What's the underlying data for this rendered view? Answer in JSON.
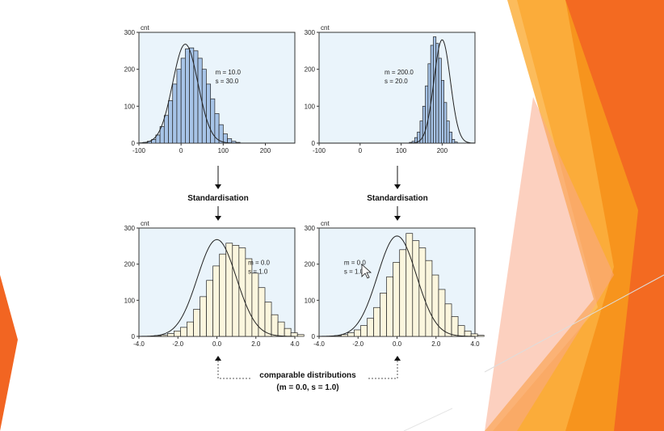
{
  "slide": {
    "step_label": "Standardisation",
    "caption_line1": "comparable distributions",
    "caption_line2": "(m = 0.0, s = 1.0)",
    "accent_colors": [
      "#f7941d",
      "#f26522",
      "#fbb040",
      "#f9a98b"
    ]
  },
  "chart_data": [
    {
      "type": "bar",
      "ylabel": "cnt",
      "xlim": [
        -100,
        270
      ],
      "ylim": [
        0,
        300
      ],
      "xticks": [
        -100,
        0,
        100,
        200
      ],
      "xtick_labels": [
        "-100",
        "0",
        "100",
        "200"
      ],
      "yticks": [
        0,
        100,
        200,
        300
      ],
      "ytick_labels": [
        "0",
        "100",
        "200",
        "300"
      ],
      "bin_start": -100,
      "bin_width": 10,
      "values": [
        0,
        2,
        5,
        10,
        22,
        45,
        75,
        115,
        160,
        200,
        230,
        255,
        258,
        250,
        230,
        200,
        160,
        120,
        80,
        50,
        25,
        12,
        5,
        2,
        0
      ],
      "curve": {
        "mean": 10,
        "sd": 30,
        "peak": 268
      },
      "stats": [
        "m = 10.0",
        "s = 30.0"
      ],
      "bar_color": "#a7c4e8",
      "bg_color": "#eaf4fb"
    },
    {
      "type": "bar",
      "ylabel": "cnt",
      "xlim": [
        -100,
        280
      ],
      "ylim": [
        0,
        300
      ],
      "xticks": [
        -100,
        0,
        100,
        200
      ],
      "xtick_labels": [
        "-100",
        "0",
        "100",
        "200"
      ],
      "yticks": [
        0,
        100,
        200,
        300
      ],
      "ytick_labels": [
        "0",
        "100",
        "200",
        "300"
      ],
      "bin_start": 120,
      "bin_width": 6.5,
      "values": [
        2,
        5,
        15,
        30,
        60,
        100,
        155,
        215,
        265,
        288,
        270,
        230,
        170,
        110,
        60,
        30,
        10,
        3
      ],
      "curve": {
        "mean": 200,
        "sd": 20,
        "peak": 280
      },
      "stats": [
        "m = 200.0",
        "s = 20.0"
      ],
      "bar_color": "#a7c4e8",
      "bg_color": "#eaf4fb"
    },
    {
      "type": "bar",
      "ylabel": "cnt",
      "xlim": [
        -4,
        4
      ],
      "ylim": [
        0,
        300
      ],
      "xticks": [
        -4,
        -2,
        0,
        2,
        4
      ],
      "xtick_labels": [
        "-4.0",
        "-2.0",
        "0.0",
        "2.0",
        "4.0"
      ],
      "yticks": [
        0,
        100,
        200,
        300
      ],
      "ytick_labels": [
        "0",
        "100",
        "200",
        "300"
      ],
      "bin_start": -3.2,
      "bin_width": 0.3333,
      "values": [
        2,
        4,
        8,
        15,
        25,
        40,
        75,
        110,
        155,
        195,
        228,
        258,
        252,
        245,
        215,
        175,
        135,
        95,
        60,
        40,
        22,
        10,
        5
      ],
      "curve": {
        "mean": 0,
        "sd": 1,
        "peak": 268
      },
      "stats": [
        "m = 0.0",
        "s = 1.0"
      ],
      "bar_color": "#fbf6de",
      "bg_color": "#eaf4fb"
    },
    {
      "type": "bar",
      "ylabel": "cnt",
      "xlim": [
        -4,
        4
      ],
      "ylim": [
        0,
        300
      ],
      "xticks": [
        -4,
        -2,
        0,
        2,
        4
      ],
      "xtick_labels": [
        "-4.0",
        "-2.0",
        "0.0",
        "2.0",
        "4.0"
      ],
      "yticks": [
        0,
        100,
        200,
        300
      ],
      "ytick_labels": [
        "0",
        "100",
        "200",
        "300"
      ],
      "bin_start": -3.2,
      "bin_width": 0.3333,
      "values": [
        2,
        5,
        10,
        18,
        30,
        50,
        80,
        120,
        165,
        205,
        240,
        285,
        265,
        245,
        210,
        170,
        130,
        90,
        55,
        30,
        15,
        7,
        3
      ],
      "curve": {
        "mean": 0,
        "sd": 1,
        "peak": 278
      },
      "stats": [
        "m = 0.0",
        "s = 1.0"
      ],
      "bar_color": "#fbf6de",
      "bg_color": "#eaf4fb"
    }
  ]
}
